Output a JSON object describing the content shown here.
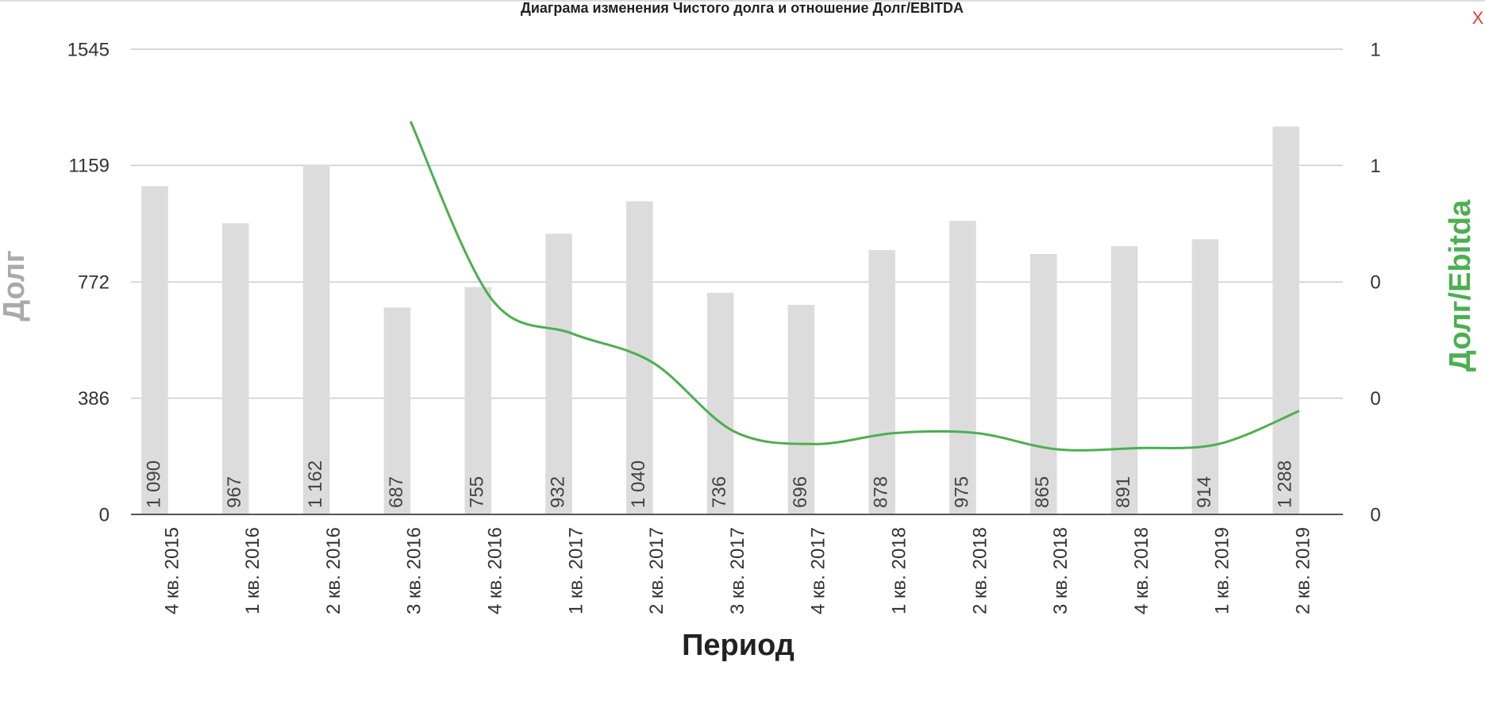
{
  "chart_data": {
    "type": "bar_line",
    "title": "Диаграма изменения Чистого долга и отношение Долг/EBITDA",
    "close_label": "X",
    "x_label": "Период",
    "y_label": "Долг",
    "y2_label": "Долг/Ebitda",
    "categories": [
      "4 кв. 2015",
      "1 кв. 2016",
      "2 кв. 2016",
      "3 кв. 2016",
      "4 кв. 2016",
      "1 кв. 2017",
      "2 кв. 2017",
      "3 кв. 2017",
      "4 кв. 2017",
      "1 кв. 2018",
      "2 кв. 2018",
      "3 кв. 2018",
      "4 кв. 2018",
      "1 кв. 2019",
      "2 кв. 2019"
    ],
    "series": [
      {
        "name": "Долг",
        "type": "bar",
        "color": "#dcdcdc",
        "values": [
          1090,
          967,
          1162,
          687,
          755,
          932,
          1040,
          736,
          696,
          878,
          975,
          865,
          891,
          914,
          1288
        ],
        "value_labels": [
          "1 090",
          "967",
          "1 162",
          "687",
          "755",
          "932",
          "1 040",
          "736",
          "696",
          "878",
          "975",
          "865",
          "891",
          "914",
          "1 288"
        ]
      },
      {
        "name": "Долг/Ebitda",
        "type": "line",
        "axis": "y2",
        "color": "#4caf50",
        "values": [
          null,
          null,
          null,
          0.676,
          0.371,
          0.311,
          0.261,
          0.143,
          0.121,
          0.14,
          0.14,
          0.112,
          0.114,
          0.121,
          0.178
        ]
      }
    ],
    "ylim": [
      0,
      1545
    ],
    "yticks": [
      0,
      386,
      772,
      1159,
      1545
    ],
    "y2lim": [
      0,
      0.8
    ],
    "y2ticks": [
      0,
      {
        "value": 0.2,
        "label": "0"
      },
      {
        "value": 0.4,
        "label": "0"
      },
      {
        "value": 0.6,
        "label": "1"
      },
      {
        "value": 0.8,
        "label": "1"
      }
    ],
    "grid": true
  }
}
